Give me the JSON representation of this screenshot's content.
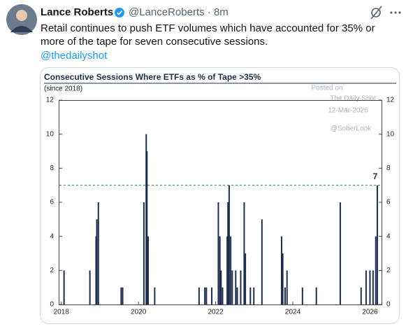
{
  "tweet": {
    "name": "Lance Roberts",
    "meta": "@LanceRoberts · 8m",
    "text": [
      "Retail continues to push ETF volumes which have accounted for 35% or",
      "more of the tape for seven consecutive sessions."
    ],
    "link": "@thedailyshot"
  },
  "chart_data": {
    "type": "bar",
    "title": "Consecutive Sessions Where ETFs as % of Tape >35%",
    "subtitle": "(since 2018)",
    "watermark": [
      "Posted on",
      "The Daily Shot",
      "12-Mar-2026",
      "@SoberLook"
    ],
    "color": "#1f2d4d",
    "x": [
      2018.07,
      2018.74,
      2018.9,
      2018.92,
      2018.96,
      2019.55,
      2019.59,
      2020.14,
      2020.2,
      2020.22,
      2020.25,
      2020.42,
      2021.57,
      2021.72,
      2021.76,
      2021.9,
      2022.07,
      2022.11,
      2022.14,
      2022.18,
      2022.3,
      2022.32,
      2022.35,
      2022.39,
      2022.43,
      2022.52,
      2022.56,
      2022.65,
      2022.74,
      2022.77,
      2022.9,
      2022.99,
      2023.2,
      2023.71,
      2023.74,
      2023.8,
      2023.85,
      2024.25,
      2024.61,
      2025.23,
      2025.77,
      2025.9,
      2026.0,
      2026.08,
      2026.15,
      2026.19
    ],
    "values": [
      2,
      2,
      4,
      5,
      6,
      1,
      1,
      6,
      10,
      9,
      4,
      1,
      1,
      1,
      1,
      1,
      6,
      4,
      2,
      1,
      4,
      6,
      7,
      4,
      2,
      2,
      1,
      2,
      6,
      3,
      1,
      1,
      5,
      4,
      3,
      1,
      2,
      1,
      1,
      6,
      1,
      2,
      2,
      2,
      4,
      7
    ],
    "threshold": 7,
    "xlim": [
      2017.95,
      2026.3
    ],
    "xticks": [
      2018,
      2020,
      2022,
      2024,
      2026
    ],
    "ylim": [
      0,
      12
    ],
    "yticks": [
      0,
      2,
      4,
      6,
      8,
      10,
      12
    ],
    "y2lim": [
      0,
      12
    ],
    "y2ticks": [
      0,
      2,
      4,
      6,
      8,
      10,
      12
    ]
  }
}
